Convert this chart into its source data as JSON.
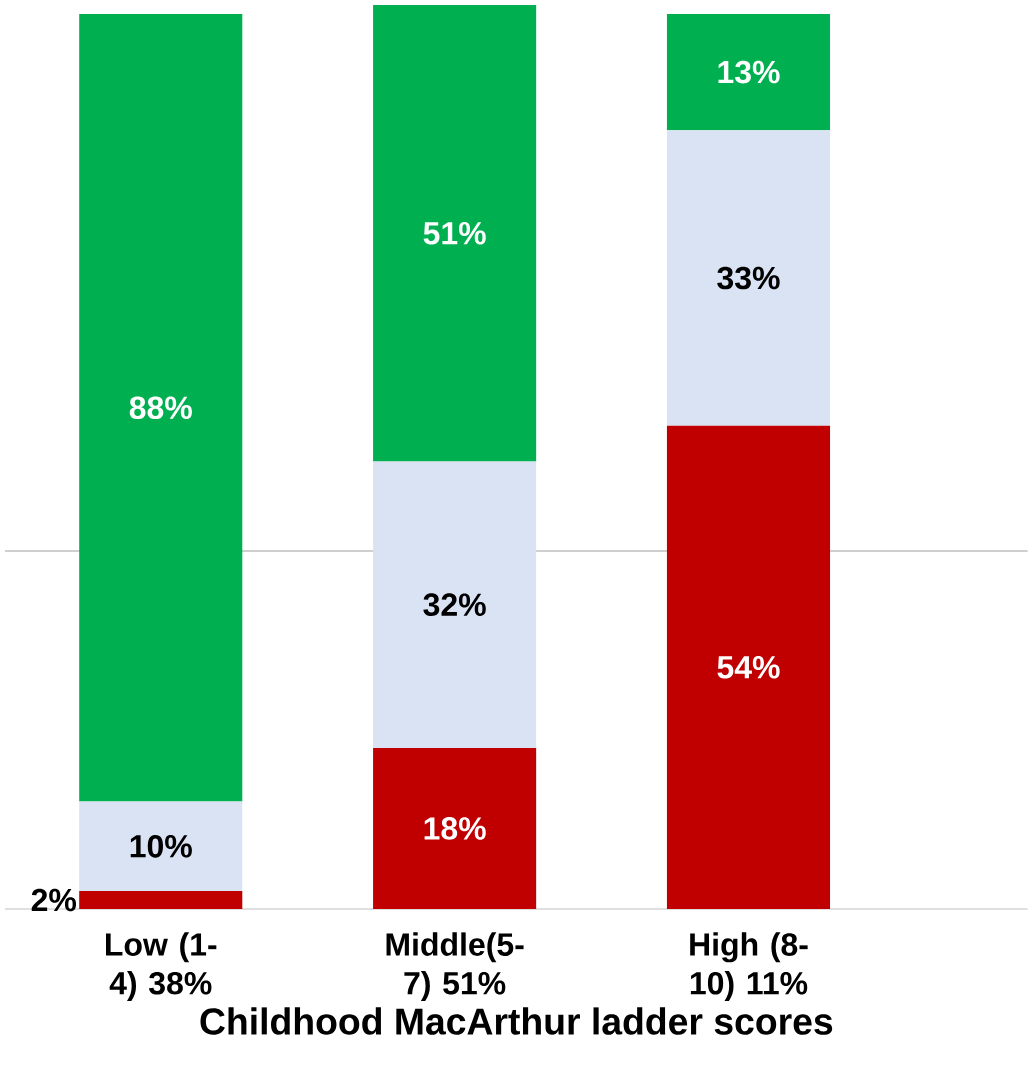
{
  "chart_data": {
    "type": "bar",
    "stacked": true,
    "xlabel": "Childhood MacArthur ladder scores",
    "categories": [
      "Low (1-4) 38%",
      "Middle(5-7) 51%",
      "High (8-10) 11%"
    ],
    "series": [
      {
        "color": "#c00000",
        "values": [
          2,
          18,
          54
        ],
        "value_labels": [
          "2%",
          "18%",
          "54%"
        ]
      },
      {
        "color": "#dae3f3",
        "values": [
          10,
          32,
          33
        ],
        "value_labels": [
          "10%",
          "32%",
          "33%"
        ]
      },
      {
        "color": "#00b050",
        "values": [
          88,
          51,
          13
        ],
        "value_labels": [
          "88%",
          "51%",
          "13%"
        ]
      }
    ],
    "tick_labels": "x",
    "ref_lines": [
      {
        "axis": "y",
        "value": 40,
        "color": "#bfbfbf"
      }
    ]
  }
}
